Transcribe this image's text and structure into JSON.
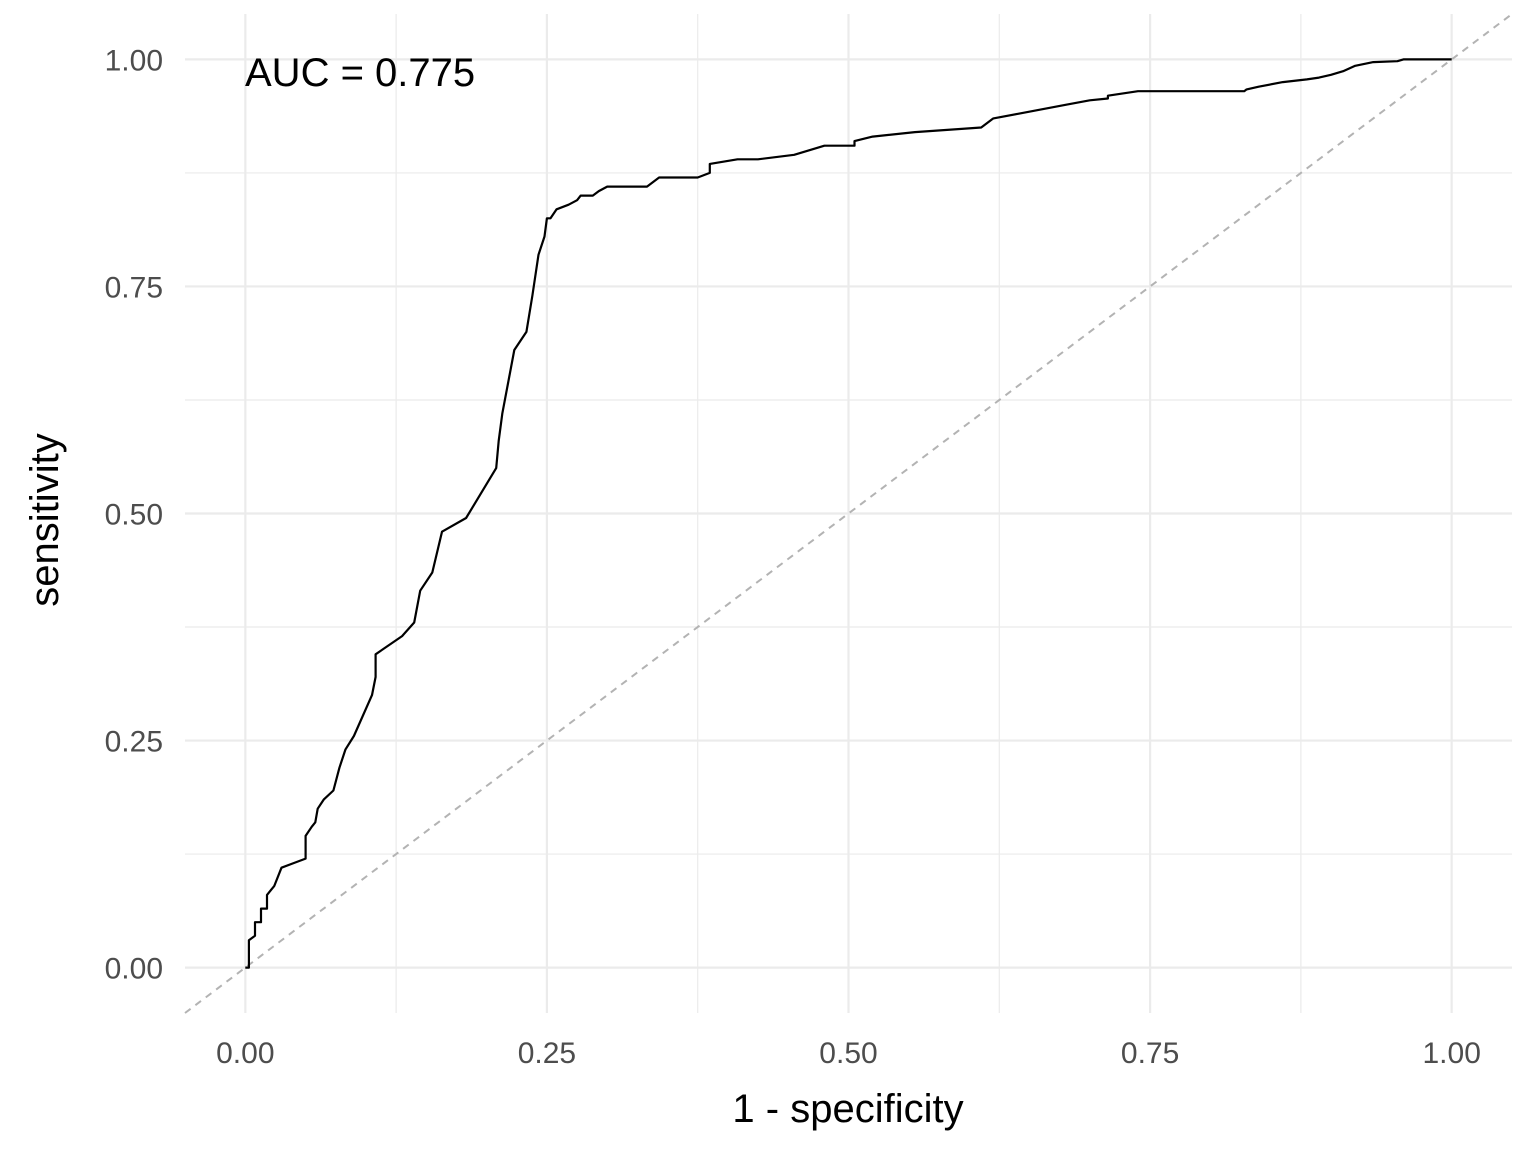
{
  "chart_data": {
    "type": "line",
    "title": "",
    "xlabel": "1 - specificity",
    "ylabel": "sensitivity",
    "annotation": "AUC = 0.775",
    "xlim": [
      -0.05,
      1.05
    ],
    "ylim": [
      -0.05,
      1.05
    ],
    "x_ticks": [
      "0.00",
      "0.25",
      "0.50",
      "0.75",
      "1.00"
    ],
    "y_ticks": [
      "0.00",
      "0.25",
      "0.50",
      "0.75",
      "1.00"
    ],
    "grid": true,
    "legend": "none",
    "colors": {
      "roc": "#000000",
      "reference": "#b3b3b3",
      "grid": "#ebebeb",
      "tick_text": "#4d4d4d"
    },
    "series": [
      {
        "values_x": [
          0.0,
          0.003,
          0.003,
          0.008,
          0.008,
          0.013,
          0.013,
          0.018,
          0.018,
          0.024,
          0.03,
          0.04,
          0.05,
          0.05,
          0.055,
          0.058,
          0.06,
          0.065,
          0.073,
          0.078,
          0.083,
          0.09,
          0.105,
          0.108,
          0.108,
          0.13,
          0.14,
          0.145,
          0.155,
          0.163,
          0.183,
          0.208,
          0.21,
          0.213,
          0.223,
          0.233,
          0.238,
          0.243,
          0.248,
          0.25,
          0.253,
          0.258,
          0.268,
          0.275,
          0.278,
          0.288,
          0.293,
          0.3,
          0.303,
          0.313,
          0.333,
          0.343,
          0.345,
          0.35,
          0.355,
          0.375,
          0.385,
          0.385,
          0.408,
          0.425,
          0.455,
          0.48,
          0.505,
          0.505,
          0.52,
          0.555,
          0.61,
          0.62,
          0.64,
          0.68,
          0.7,
          0.715,
          0.715,
          0.74,
          0.76,
          0.828,
          0.83,
          0.84,
          0.86,
          0.88,
          0.89,
          0.9,
          0.91,
          0.92,
          0.935,
          0.955,
          0.96,
          0.978,
          0.98,
          1.0
        ],
        "values_y": [
          0.0,
          0.0,
          0.03,
          0.035,
          0.05,
          0.05,
          0.065,
          0.065,
          0.08,
          0.09,
          0.11,
          0.115,
          0.12,
          0.145,
          0.155,
          0.16,
          0.175,
          0.185,
          0.195,
          0.22,
          0.24,
          0.255,
          0.3,
          0.32,
          0.345,
          0.365,
          0.38,
          0.415,
          0.435,
          0.48,
          0.495,
          0.55,
          0.58,
          0.61,
          0.68,
          0.7,
          0.74,
          0.785,
          0.805,
          0.825,
          0.825,
          0.835,
          0.84,
          0.845,
          0.85,
          0.85,
          0.855,
          0.86,
          0.86,
          0.86,
          0.86,
          0.87,
          0.87,
          0.87,
          0.87,
          0.87,
          0.875,
          0.885,
          0.89,
          0.89,
          0.895,
          0.905,
          0.905,
          0.91,
          0.915,
          0.92,
          0.925,
          0.935,
          0.94,
          0.95,
          0.955,
          0.957,
          0.96,
          0.965,
          0.965,
          0.965,
          0.967,
          0.97,
          0.975,
          0.978,
          0.98,
          0.983,
          0.987,
          0.993,
          0.997,
          0.998,
          1.0,
          1.0,
          1.0,
          1.0
        ]
      }
    ],
    "reference_line": {
      "x": [
        0,
        1
      ],
      "y": [
        0,
        1
      ],
      "style": "dashed"
    }
  }
}
